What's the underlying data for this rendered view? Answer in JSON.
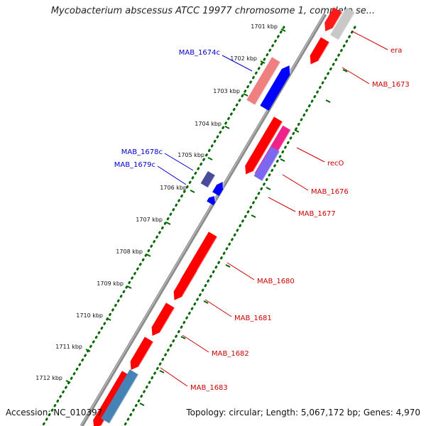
{
  "title": "Mycobacterium abscessus ATCC 19977 chromosome 1, complete se...",
  "footer": {
    "accession": "Accession: NC_010397",
    "topology": "Topology: circular; Length: 5,067,172 bp; Genes: 4,970"
  },
  "colors": {
    "forward_gene": "#ff0000",
    "reverse_gene": "#0000ff",
    "backbone": "#808080",
    "ticks": "#006600",
    "label_forward": "#cc0000",
    "label_reverse": "#0000cc"
  },
  "scale_ticks": [
    {
      "label": "1701 kbp"
    },
    {
      "label": "1702 kbp"
    },
    {
      "label": "1703 kbp"
    },
    {
      "label": "1704 kbp"
    },
    {
      "label": "1705 kbp"
    },
    {
      "label": "1706 kbp"
    },
    {
      "label": "1707 kbp"
    },
    {
      "label": "1708 kbp"
    },
    {
      "label": "1709 kbp"
    },
    {
      "label": "1710 kbp"
    },
    {
      "label": "1711 kbp"
    },
    {
      "label": "1712 kbp"
    }
  ],
  "gene_labels": [
    {
      "text": "era",
      "strand": "forward"
    },
    {
      "text": "MAB_1673",
      "strand": "forward"
    },
    {
      "text": "MAB_1674c",
      "strand": "reverse"
    },
    {
      "text": "recO",
      "strand": "forward"
    },
    {
      "text": "MAB_1676",
      "strand": "forward"
    },
    {
      "text": "MAB_1677",
      "strand": "forward"
    },
    {
      "text": "MAB_1678c",
      "strand": "reverse"
    },
    {
      "text": "MAB_1679c",
      "strand": "reverse"
    },
    {
      "text": "MAB_1680",
      "strand": "forward"
    },
    {
      "text": "MAB_1681",
      "strand": "forward"
    },
    {
      "text": "MAB_1682",
      "strand": "forward"
    },
    {
      "text": "MAB_1683",
      "strand": "forward"
    }
  ]
}
